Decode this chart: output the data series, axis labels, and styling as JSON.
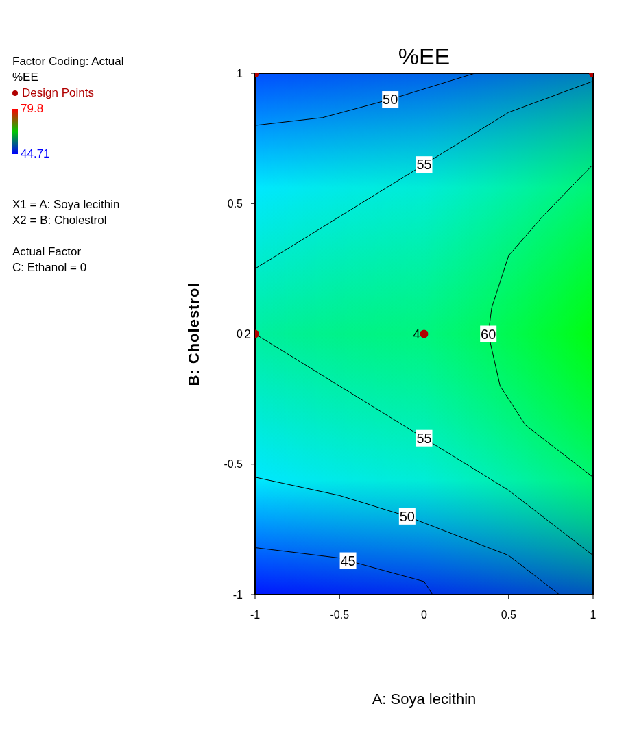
{
  "chart_data": {
    "type": "scatter",
    "title": "%EE",
    "xlabel": "A: Soya lecithin",
    "ylabel": "B: Cholestrol",
    "xlim": [
      -1,
      1
    ],
    "xticks": [
      -1,
      -0.5,
      0,
      0.5,
      1
    ],
    "ylim": [
      -1,
      1
    ],
    "yticks": [
      -1,
      -0.5,
      0,
      0.5,
      1
    ],
    "clim": [
      44.71,
      79.8
    ],
    "cticks": [
      44.71,
      79.8
    ],
    "series": [
      {
        "type": "line",
        "name": "50",
        "color": "#000000",
        "x": [
          -1,
          -0.6,
          -0.2,
          0.15,
          0.3
        ],
        "values": [
          0.8,
          0.83,
          0.9,
          0.97,
          1
        ]
      },
      {
        "type": "line",
        "name": "55",
        "color": "#000000",
        "x": [
          -1,
          -0.5,
          0,
          0.5,
          1
        ],
        "values": [
          0.25,
          0.45,
          0.65,
          0.85,
          0.97
        ]
      },
      {
        "type": "line",
        "name": "60",
        "color": "#000000",
        "x": [
          1,
          0.7,
          0.5,
          0.4,
          0.38,
          0.45,
          0.6,
          0.8,
          1
        ],
        "values": [
          0.65,
          0.45,
          0.3,
          0.1,
          0,
          -0.2,
          -0.35,
          -0.45,
          -0.55
        ]
      },
      {
        "type": "line",
        "name": "55",
        "color": "#000000",
        "x": [
          -1,
          -0.5,
          0,
          0.5,
          1
        ],
        "values": [
          0,
          -0.2,
          -0.4,
          -0.6,
          -0.85
        ]
      },
      {
        "type": "line",
        "name": "50",
        "color": "#000000",
        "x": [
          -1,
          -0.5,
          -0.1,
          0.5,
          0.8
        ],
        "values": [
          -0.55,
          -0.62,
          -0.7,
          -0.85,
          -1
        ]
      },
      {
        "type": "line",
        "name": "45",
        "color": "#000000",
        "x": [
          -1,
          -0.5,
          -0.45,
          0,
          0.05
        ],
        "values": [
          -0.82,
          -0.86,
          -0.87,
          -0.95,
          -1
        ]
      },
      {
        "type": "scatter",
        "name": "Design Points",
        "color": "#b00000",
        "x": [
          -1,
          1,
          -1,
          0
        ],
        "values": [
          1,
          1,
          0,
          0
        ]
      }
    ],
    "legend": "top left",
    "annotations": [
      "Factor Coding: Actual",
      "%EE",
      "X1 = A: Soya lecithin",
      "X2 = B: Cholestrol",
      "Actual Factor",
      "C: Ethanol = 0",
      {
        "text": "2",
        "x": -1,
        "y": 0
      },
      {
        "text": "4",
        "x": 0,
        "y": 0
      }
    ]
  }
}
